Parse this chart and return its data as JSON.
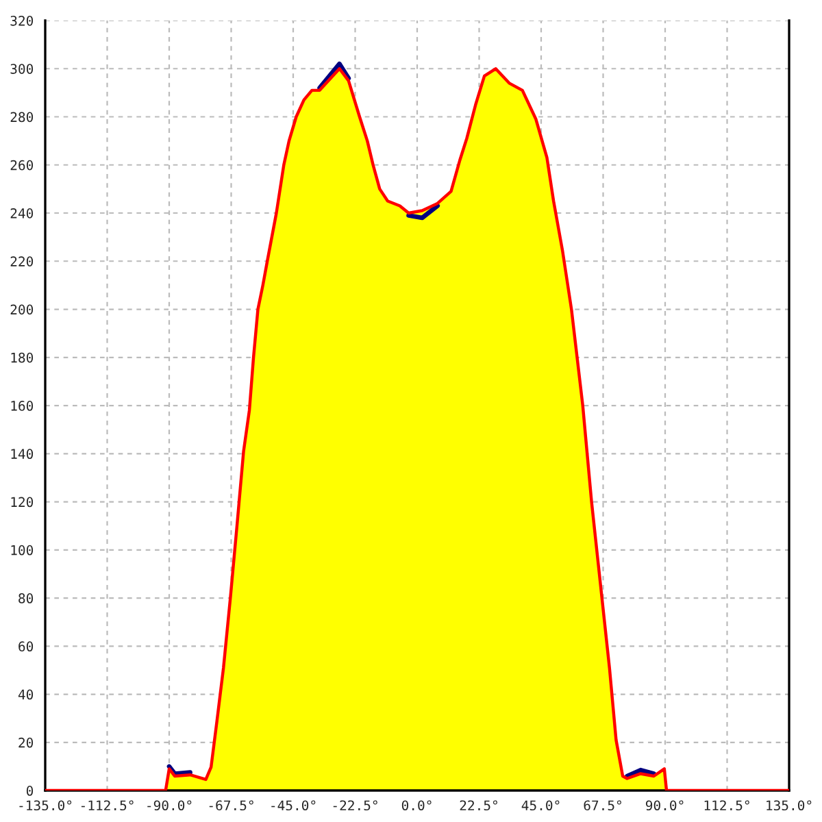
{
  "chart_data": {
    "type": "area",
    "x": [
      -135,
      -91.3,
      -90,
      -88,
      -82.4,
      -76.7,
      -74.8,
      -72.7,
      -70.3,
      -67.8,
      -65.4,
      -63,
      -60.9,
      -59.4,
      -57.8,
      -56,
      -54.4,
      -51.1,
      -48.4,
      -46.5,
      -43.9,
      -41.1,
      -38.2,
      -35.4,
      -28.2,
      -24.9,
      -20.9,
      -18.1,
      -16,
      -13.6,
      -10.7,
      -6.3,
      -3.1,
      1.8,
      7.4,
      12.3,
      15.5,
      18,
      21.2,
      24.4,
      28.5,
      33.4,
      38.2,
      43.1,
      47.1,
      49.5,
      52.8,
      56,
      60.1,
      63.3,
      66.5,
      69.8,
      72.2,
      74.6,
      76.2,
      81.1,
      85.9,
      89.7,
      90.5,
      135
    ],
    "series": [
      {
        "color": "#ffff00",
        "x": [
          -91.3,
          -90,
          -88,
          -82.4,
          -76.7,
          -74.8,
          -72.7,
          -70.3,
          -67.8,
          -65.4,
          -63,
          -60.9,
          -59.4,
          -57.8,
          -56,
          -54.4,
          -51.1,
          -48.4,
          -46.5,
          -43.9,
          -41.1,
          -38.2,
          -35.4,
          -28.2,
          -24.9,
          -20.9,
          -18.1,
          -16,
          -13.6,
          -10.7,
          -6.3,
          -3.1,
          1.8,
          7.4,
          12.3,
          15.5,
          18,
          21.2,
          24.4,
          28.5,
          33.4,
          38.2,
          43.1,
          47.1,
          49.5,
          52.8,
          56,
          60.1,
          63.3,
          66.5,
          69.8,
          72.2,
          74.6,
          76.2,
          81.1,
          85.9,
          89.7,
          90.5
        ],
        "values": [
          0,
          9,
          6,
          6.5,
          4.6,
          9.7,
          28.6,
          51,
          80,
          110,
          141,
          158,
          180,
          200,
          210,
          220,
          240,
          260,
          270,
          280,
          287,
          291,
          291,
          300,
          295,
          280,
          270,
          260,
          250,
          245,
          243,
          240,
          241,
          244,
          249,
          262,
          271,
          285,
          297,
          300,
          294,
          291,
          279,
          263,
          245,
          224,
          200,
          160,
          120,
          86,
          51,
          21,
          6,
          5,
          7,
          6,
          9,
          0
        ]
      },
      {
        "type": "line",
        "color": "#000080",
        "x": [
          -90,
          -88,
          -82.4,
          -80,
          -35.4,
          -28.2,
          -24.9,
          -20,
          -3.1,
          1.8,
          7.4,
          10,
          76.2,
          81.1,
          85.9
        ],
        "values": [
          10,
          7,
          7.5,
          null,
          292,
          302,
          296,
          null,
          239,
          238,
          243,
          null,
          6,
          8.5,
          7
        ]
      },
      {
        "type": "line",
        "color": "#ff0000",
        "values": [
          0,
          0,
          9,
          6,
          6.5,
          4.6,
          9.7,
          28.6,
          51,
          80,
          110,
          141,
          158,
          180,
          200,
          210,
          220,
          240,
          260,
          270,
          280,
          287,
          291,
          291,
          300,
          295,
          280,
          270,
          260,
          250,
          245,
          243,
          240,
          241,
          244,
          249,
          262,
          271,
          285,
          297,
          300,
          294,
          291,
          279,
          263,
          245,
          224,
          200,
          160,
          120,
          86,
          51,
          21,
          6,
          5,
          7,
          6,
          9,
          0,
          0
        ]
      }
    ],
    "xlim": [
      -135,
      135
    ],
    "xticks": [
      {
        "value": -135,
        "label": "-135.0°"
      },
      {
        "value": -112.5,
        "label": "-112.5°"
      },
      {
        "value": -90,
        "label": "-90.0°"
      },
      {
        "value": -67.5,
        "label": "-67.5°"
      },
      {
        "value": -45,
        "label": "-45.0°"
      },
      {
        "value": -22.5,
        "label": "-22.5°"
      },
      {
        "value": 0,
        "label": "0.0°"
      },
      {
        "value": 22.5,
        "label": "22.5°"
      },
      {
        "value": 45,
        "label": "45.0°"
      },
      {
        "value": 67.5,
        "label": "67.5°"
      },
      {
        "value": 90,
        "label": "90.0°"
      },
      {
        "value": 112.5,
        "label": "112.5°"
      },
      {
        "value": 135,
        "label": "135.0°"
      }
    ],
    "ylim": [
      0,
      320
    ],
    "yticks": [
      0,
      20,
      40,
      60,
      80,
      100,
      120,
      140,
      160,
      180,
      200,
      220,
      240,
      260,
      280,
      300,
      320
    ],
    "grid": true,
    "line_style": "solid"
  }
}
